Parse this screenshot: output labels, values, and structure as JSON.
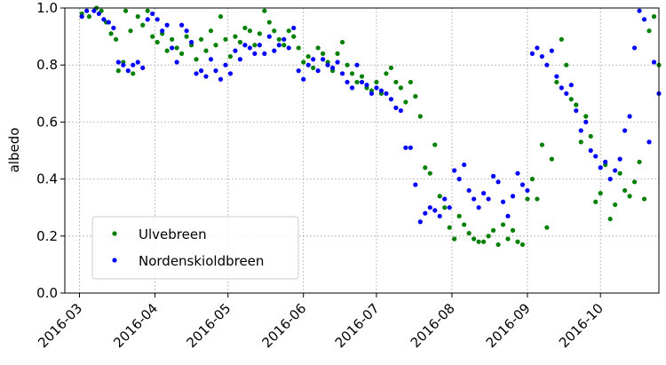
{
  "chart_data": {
    "type": "scatter",
    "title": "albedo",
    "xlabel": "",
    "ylabel": "albedo",
    "xlim": [
      "2016-02-24",
      "2016-10-25"
    ],
    "ylim": [
      0.0,
      1.0
    ],
    "x_ticks": [
      "2016-03",
      "2016-04",
      "2016-05",
      "2016-06",
      "2016-07",
      "2016-08",
      "2016-09",
      "2016-10"
    ],
    "y_ticks": [
      "0.0",
      "0.2",
      "0.4",
      "0.6",
      "0.8",
      "1.0"
    ],
    "grid": true,
    "legend_position": "lower-left",
    "series": [
      {
        "name": "Ulvebreen",
        "color": "#008000",
        "points": [
          [
            "2016-03-02",
            0.98
          ],
          [
            "2016-03-05",
            0.97
          ],
          [
            "2016-03-08",
            1.0
          ],
          [
            "2016-03-10",
            0.99
          ],
          [
            "2016-03-12",
            0.95
          ],
          [
            "2016-03-14",
            0.91
          ],
          [
            "2016-03-16",
            0.89
          ],
          [
            "2016-03-17",
            0.78
          ],
          [
            "2016-03-19",
            0.81
          ],
          [
            "2016-03-20",
            0.99
          ],
          [
            "2016-03-22",
            0.92
          ],
          [
            "2016-03-23",
            0.77
          ],
          [
            "2016-03-25",
            0.97
          ],
          [
            "2016-03-27",
            0.94
          ],
          [
            "2016-03-29",
            0.99
          ],
          [
            "2016-03-31",
            0.9
          ],
          [
            "2016-04-02",
            0.88
          ],
          [
            "2016-04-04",
            0.91
          ],
          [
            "2016-04-06",
            0.85
          ],
          [
            "2016-04-08",
            0.89
          ],
          [
            "2016-04-10",
            0.86
          ],
          [
            "2016-04-12",
            0.84
          ],
          [
            "2016-04-14",
            0.9
          ],
          [
            "2016-04-16",
            0.87
          ],
          [
            "2016-04-18",
            0.82
          ],
          [
            "2016-04-20",
            0.89
          ],
          [
            "2016-04-22",
            0.85
          ],
          [
            "2016-04-24",
            0.92
          ],
          [
            "2016-04-26",
            0.87
          ],
          [
            "2016-04-28",
            0.97
          ],
          [
            "2016-04-30",
            0.89
          ],
          [
            "2016-05-02",
            0.83
          ],
          [
            "2016-05-04",
            0.9
          ],
          [
            "2016-05-06",
            0.88
          ],
          [
            "2016-05-08",
            0.93
          ],
          [
            "2016-05-10",
            0.92
          ],
          [
            "2016-05-12",
            0.87
          ],
          [
            "2016-05-14",
            0.91
          ],
          [
            "2016-05-16",
            0.99
          ],
          [
            "2016-05-18",
            0.95
          ],
          [
            "2016-05-20",
            0.92
          ],
          [
            "2016-05-22",
            0.89
          ],
          [
            "2016-05-24",
            0.87
          ],
          [
            "2016-05-26",
            0.92
          ],
          [
            "2016-05-28",
            0.9
          ],
          [
            "2016-05-30",
            0.86
          ],
          [
            "2016-06-01",
            0.81
          ],
          [
            "2016-06-03",
            0.83
          ],
          [
            "2016-06-05",
            0.79
          ],
          [
            "2016-06-07",
            0.86
          ],
          [
            "2016-06-09",
            0.84
          ],
          [
            "2016-06-11",
            0.81
          ],
          [
            "2016-06-13",
            0.78
          ],
          [
            "2016-06-15",
            0.84
          ],
          [
            "2016-06-17",
            0.88
          ],
          [
            "2016-06-19",
            0.8
          ],
          [
            "2016-06-21",
            0.77
          ],
          [
            "2016-06-23",
            0.74
          ],
          [
            "2016-06-25",
            0.76
          ],
          [
            "2016-06-27",
            0.72
          ],
          [
            "2016-06-29",
            0.71
          ],
          [
            "2016-07-01",
            0.74
          ],
          [
            "2016-07-03",
            0.7
          ],
          [
            "2016-07-05",
            0.77
          ],
          [
            "2016-07-07",
            0.79
          ],
          [
            "2016-07-09",
            0.74
          ],
          [
            "2016-07-11",
            0.72
          ],
          [
            "2016-07-13",
            0.67
          ],
          [
            "2016-07-15",
            0.74
          ],
          [
            "2016-07-17",
            0.69
          ],
          [
            "2016-07-19",
            0.62
          ],
          [
            "2016-07-21",
            0.44
          ],
          [
            "2016-07-23",
            0.42
          ],
          [
            "2016-07-25",
            0.52
          ],
          [
            "2016-07-27",
            0.34
          ],
          [
            "2016-07-29",
            0.3
          ],
          [
            "2016-07-31",
            0.23
          ],
          [
            "2016-08-02",
            0.19
          ],
          [
            "2016-08-04",
            0.27
          ],
          [
            "2016-08-06",
            0.24
          ],
          [
            "2016-08-08",
            0.21
          ],
          [
            "2016-08-10",
            0.19
          ],
          [
            "2016-08-12",
            0.18
          ],
          [
            "2016-08-14",
            0.18
          ],
          [
            "2016-08-16",
            0.2
          ],
          [
            "2016-08-18",
            0.22
          ],
          [
            "2016-08-20",
            0.17
          ],
          [
            "2016-08-22",
            0.24
          ],
          [
            "2016-08-24",
            0.19
          ],
          [
            "2016-08-26",
            0.22
          ],
          [
            "2016-08-28",
            0.18
          ],
          [
            "2016-08-30",
            0.17
          ],
          [
            "2016-09-01",
            0.33
          ],
          [
            "2016-09-03",
            0.4
          ],
          [
            "2016-09-05",
            0.33
          ],
          [
            "2016-09-07",
            0.52
          ],
          [
            "2016-09-09",
            0.23
          ],
          [
            "2016-09-11",
            0.47
          ],
          [
            "2016-09-13",
            0.74
          ],
          [
            "2016-09-15",
            0.89
          ],
          [
            "2016-09-17",
            0.8
          ],
          [
            "2016-09-19",
            0.68
          ],
          [
            "2016-09-21",
            0.66
          ],
          [
            "2016-09-23",
            0.53
          ],
          [
            "2016-09-25",
            0.62
          ],
          [
            "2016-09-27",
            0.55
          ],
          [
            "2016-09-29",
            0.32
          ],
          [
            "2016-10-01",
            0.35
          ],
          [
            "2016-10-03",
            0.45
          ],
          [
            "2016-10-05",
            0.26
          ],
          [
            "2016-10-07",
            0.31
          ],
          [
            "2016-10-09",
            0.42
          ],
          [
            "2016-10-11",
            0.36
          ],
          [
            "2016-10-13",
            0.34
          ],
          [
            "2016-10-15",
            0.39
          ],
          [
            "2016-10-17",
            0.46
          ],
          [
            "2016-10-19",
            0.33
          ],
          [
            "2016-10-21",
            0.92
          ],
          [
            "2016-10-23",
            0.97
          ],
          [
            "2016-10-25",
            0.8
          ]
        ]
      },
      {
        "name": "Nordenskioldbreen",
        "color": "#0000ff",
        "points": [
          [
            "2016-03-02",
            0.97
          ],
          [
            "2016-03-04",
            0.99
          ],
          [
            "2016-03-07",
            0.99
          ],
          [
            "2016-03-09",
            0.98
          ],
          [
            "2016-03-11",
            0.96
          ],
          [
            "2016-03-13",
            0.95
          ],
          [
            "2016-03-15",
            0.93
          ],
          [
            "2016-03-17",
            0.81
          ],
          [
            "2016-03-19",
            0.8
          ],
          [
            "2016-03-21",
            0.78
          ],
          [
            "2016-03-23",
            0.8
          ],
          [
            "2016-03-25",
            0.81
          ],
          [
            "2016-03-27",
            0.79
          ],
          [
            "2016-03-29",
            0.96
          ],
          [
            "2016-03-31",
            0.98
          ],
          [
            "2016-04-02",
            0.96
          ],
          [
            "2016-04-04",
            0.92
          ],
          [
            "2016-04-06",
            0.94
          ],
          [
            "2016-04-08",
            0.86
          ],
          [
            "2016-04-10",
            0.81
          ],
          [
            "2016-04-12",
            0.94
          ],
          [
            "2016-04-14",
            0.92
          ],
          [
            "2016-04-16",
            0.88
          ],
          [
            "2016-04-18",
            0.77
          ],
          [
            "2016-04-20",
            0.78
          ],
          [
            "2016-04-22",
            0.76
          ],
          [
            "2016-04-24",
            0.82
          ],
          [
            "2016-04-26",
            0.78
          ],
          [
            "2016-04-28",
            0.75
          ],
          [
            "2016-04-30",
            0.8
          ],
          [
            "2016-05-02",
            0.77
          ],
          [
            "2016-05-04",
            0.85
          ],
          [
            "2016-05-06",
            0.82
          ],
          [
            "2016-05-08",
            0.87
          ],
          [
            "2016-05-10",
            0.86
          ],
          [
            "2016-05-12",
            0.84
          ],
          [
            "2016-05-14",
            0.87
          ],
          [
            "2016-05-16",
            0.84
          ],
          [
            "2016-05-18",
            0.9
          ],
          [
            "2016-05-20",
            0.85
          ],
          [
            "2016-05-22",
            0.87
          ],
          [
            "2016-05-24",
            0.89
          ],
          [
            "2016-05-26",
            0.86
          ],
          [
            "2016-05-28",
            0.93
          ],
          [
            "2016-05-30",
            0.78
          ],
          [
            "2016-06-01",
            0.75
          ],
          [
            "2016-06-03",
            0.8
          ],
          [
            "2016-06-05",
            0.82
          ],
          [
            "2016-06-07",
            0.78
          ],
          [
            "2016-06-09",
            0.82
          ],
          [
            "2016-06-11",
            0.8
          ],
          [
            "2016-06-13",
            0.79
          ],
          [
            "2016-06-15",
            0.81
          ],
          [
            "2016-06-17",
            0.77
          ],
          [
            "2016-06-19",
            0.74
          ],
          [
            "2016-06-21",
            0.72
          ],
          [
            "2016-06-23",
            0.8
          ],
          [
            "2016-06-25",
            0.74
          ],
          [
            "2016-06-27",
            0.73
          ],
          [
            "2016-06-29",
            0.7
          ],
          [
            "2016-07-01",
            0.72
          ],
          [
            "2016-07-03",
            0.71
          ],
          [
            "2016-07-05",
            0.7
          ],
          [
            "2016-07-07",
            0.68
          ],
          [
            "2016-07-09",
            0.65
          ],
          [
            "2016-07-11",
            0.64
          ],
          [
            "2016-07-13",
            0.51
          ],
          [
            "2016-07-15",
            0.51
          ],
          [
            "2016-07-17",
            0.38
          ],
          [
            "2016-07-19",
            0.25
          ],
          [
            "2016-07-21",
            0.28
          ],
          [
            "2016-07-23",
            0.3
          ],
          [
            "2016-07-25",
            0.29
          ],
          [
            "2016-07-27",
            0.27
          ],
          [
            "2016-07-29",
            0.33
          ],
          [
            "2016-07-31",
            0.3
          ],
          [
            "2016-08-02",
            0.43
          ],
          [
            "2016-08-04",
            0.4
          ],
          [
            "2016-08-06",
            0.45
          ],
          [
            "2016-08-08",
            0.36
          ],
          [
            "2016-08-10",
            0.33
          ],
          [
            "2016-08-12",
            0.3
          ],
          [
            "2016-08-14",
            0.35
          ],
          [
            "2016-08-16",
            0.33
          ],
          [
            "2016-08-18",
            0.41
          ],
          [
            "2016-08-20",
            0.39
          ],
          [
            "2016-08-22",
            0.32
          ],
          [
            "2016-08-24",
            0.27
          ],
          [
            "2016-08-26",
            0.34
          ],
          [
            "2016-08-28",
            0.42
          ],
          [
            "2016-08-30",
            0.38
          ],
          [
            "2016-09-01",
            0.36
          ],
          [
            "2016-09-03",
            0.84
          ],
          [
            "2016-09-05",
            0.86
          ],
          [
            "2016-09-07",
            0.83
          ],
          [
            "2016-09-09",
            0.8
          ],
          [
            "2016-09-11",
            0.85
          ],
          [
            "2016-09-13",
            0.76
          ],
          [
            "2016-09-15",
            0.72
          ],
          [
            "2016-09-17",
            0.7
          ],
          [
            "2016-09-19",
            0.73
          ],
          [
            "2016-09-21",
            0.64
          ],
          [
            "2016-09-23",
            0.57
          ],
          [
            "2016-09-25",
            0.6
          ],
          [
            "2016-09-27",
            0.5
          ],
          [
            "2016-09-29",
            0.48
          ],
          [
            "2016-10-01",
            0.44
          ],
          [
            "2016-10-03",
            0.46
          ],
          [
            "2016-10-05",
            0.4
          ],
          [
            "2016-10-07",
            0.43
          ],
          [
            "2016-10-09",
            0.47
          ],
          [
            "2016-10-11",
            0.57
          ],
          [
            "2016-10-13",
            0.62
          ],
          [
            "2016-10-15",
            0.86
          ],
          [
            "2016-10-17",
            0.99
          ],
          [
            "2016-10-19",
            0.96
          ],
          [
            "2016-10-21",
            0.53
          ],
          [
            "2016-10-23",
            0.81
          ],
          [
            "2016-10-25",
            0.7
          ]
        ]
      }
    ]
  }
}
